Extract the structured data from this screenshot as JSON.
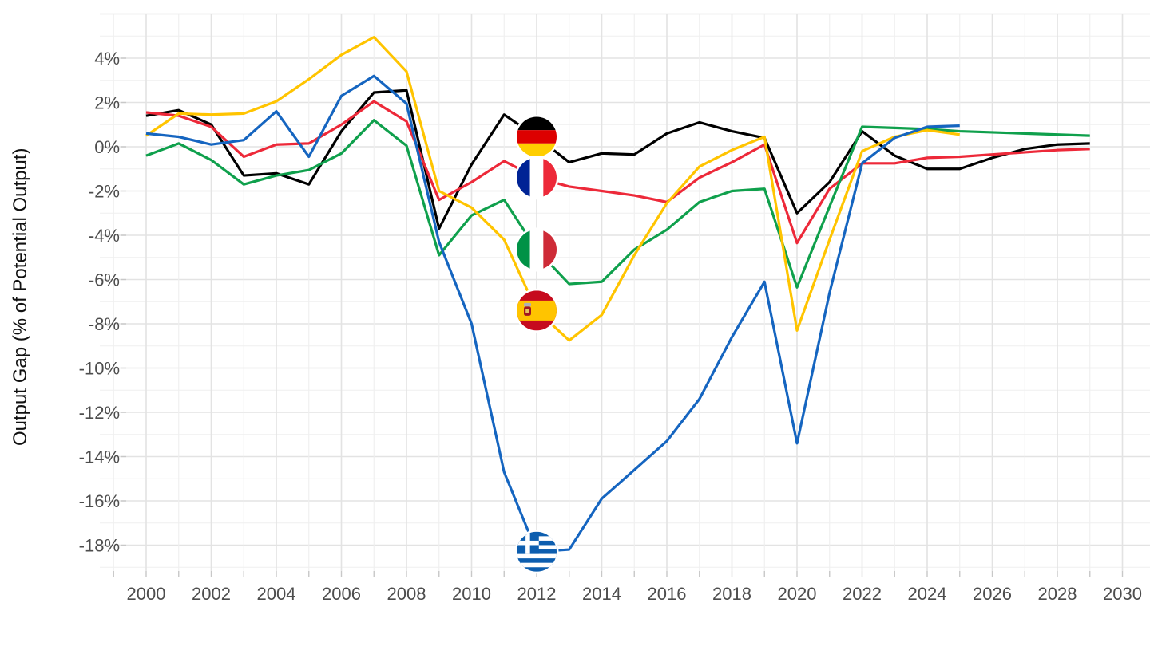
{
  "chart_data": {
    "type": "line",
    "title": "",
    "xlabel": "",
    "ylabel": "Output Gap (% of Potential Output)",
    "grid": "on",
    "legend": "circular country-flag icons placed on each line at year 2012",
    "xlim": [
      1999,
      2030.5
    ],
    "ylim": [
      -19,
      6
    ],
    "x_ticks": [
      {
        "v": 2000,
        "label": "2000"
      },
      {
        "v": 2002,
        "label": "2002"
      },
      {
        "v": 2004,
        "label": "2004"
      },
      {
        "v": 2006,
        "label": "2006"
      },
      {
        "v": 2008,
        "label": "2008"
      },
      {
        "v": 2010,
        "label": "2010"
      },
      {
        "v": 2012,
        "label": "2012"
      },
      {
        "v": 2014,
        "label": "2014"
      },
      {
        "v": 2016,
        "label": "2016"
      },
      {
        "v": 2018,
        "label": "2018"
      },
      {
        "v": 2020,
        "label": "2020"
      },
      {
        "v": 2022,
        "label": "2022"
      },
      {
        "v": 2024,
        "label": "2024"
      },
      {
        "v": 2026,
        "label": "2026"
      },
      {
        "v": 2028,
        "label": "2028"
      },
      {
        "v": 2030,
        "label": "2030"
      }
    ],
    "y_ticks": [
      {
        "v": 4,
        "label": "4%"
      },
      {
        "v": 2,
        "label": "2%"
      },
      {
        "v": 0,
        "label": "0%"
      },
      {
        "v": -2,
        "label": "-2%"
      },
      {
        "v": -4,
        "label": "-4%"
      },
      {
        "v": -6,
        "label": "-6%"
      },
      {
        "v": -8,
        "label": "-8%"
      },
      {
        "v": -10,
        "label": "-10%"
      },
      {
        "v": -12,
        "label": "-12%"
      },
      {
        "v": -14,
        "label": "-14%"
      },
      {
        "v": -16,
        "label": "-16%"
      },
      {
        "v": -18,
        "label": "-18%"
      }
    ],
    "x": [
      2000,
      2001,
      2002,
      2003,
      2004,
      2005,
      2006,
      2007,
      2008,
      2009,
      2010,
      2011,
      2012,
      2013,
      2014,
      2015,
      2016,
      2017,
      2018,
      2019,
      2020,
      2021,
      2022,
      2023,
      2024,
      2025,
      2026,
      2027,
      2028,
      2029
    ],
    "flag_marker_year": 2012,
    "series": [
      {
        "name": "Germany",
        "flag": "de",
        "color": "#000000",
        "values": [
          1.4,
          1.65,
          1.0,
          -1.3,
          -1.2,
          -1.7,
          0.7,
          2.45,
          2.55,
          -3.7,
          -0.8,
          1.45,
          0.45,
          -0.7,
          -0.3,
          -0.35,
          0.6,
          1.1,
          0.7,
          0.4,
          -3.0,
          -1.6,
          0.7,
          -0.4,
          -1.0,
          -1.0,
          -0.5,
          -0.1,
          0.1,
          0.15
        ]
      },
      {
        "name": "France",
        "flag": "fr",
        "color": "#ED2939",
        "values": [
          1.55,
          1.4,
          0.9,
          -0.45,
          0.1,
          0.15,
          1.0,
          2.05,
          1.15,
          -2.4,
          -1.6,
          -0.65,
          -1.4,
          -1.8,
          -2.0,
          -2.2,
          -2.5,
          -1.4,
          -0.7,
          0.1,
          -4.35,
          -1.9,
          -0.75,
          -0.75,
          -0.5,
          -0.45,
          -0.35,
          -0.25,
          -0.15,
          -0.1
        ]
      },
      {
        "name": "Italy",
        "flag": "it",
        "color": "#0FA04C",
        "values": [
          -0.4,
          0.15,
          -0.6,
          -1.7,
          -1.3,
          -1.05,
          -0.3,
          1.2,
          0.05,
          -4.9,
          -3.1,
          -2.4,
          -4.65,
          -6.2,
          -6.1,
          -4.65,
          -3.75,
          -2.5,
          -2.0,
          -1.9,
          -6.35,
          -2.7,
          0.9,
          0.85,
          0.8,
          0.7,
          0.65,
          0.6,
          0.55,
          0.5
        ]
      },
      {
        "name": "Spain",
        "flag": "es",
        "color": "#FFC400",
        "values": [
          0.5,
          1.5,
          1.45,
          1.5,
          2.05,
          3.05,
          4.15,
          4.95,
          3.4,
          -2.0,
          -2.75,
          -4.2,
          -7.4,
          -8.75,
          -7.6,
          -4.9,
          -2.55,
          -0.9,
          -0.15,
          0.45,
          -8.3,
          -4.2,
          -0.2,
          0.45,
          0.75,
          0.55,
          null,
          null,
          null,
          null
        ]
      },
      {
        "name": "Greece",
        "flag": "gr",
        "color": "#1565C0",
        "values": [
          0.6,
          0.45,
          0.1,
          0.3,
          1.6,
          -0.45,
          2.3,
          3.2,
          1.95,
          -4.3,
          -8.0,
          -14.7,
          -18.3,
          -18.2,
          -15.9,
          -14.6,
          -13.3,
          -11.4,
          -8.6,
          -6.1,
          -13.4,
          -6.6,
          -0.75,
          0.4,
          0.9,
          0.95,
          null,
          null,
          null,
          null
        ]
      }
    ],
    "palette": {
      "background": "#ffffff",
      "grid_major": "#e3e3e3",
      "grid_minor": "#efefef",
      "axis_text": "#4d4d4d",
      "title_text": "#111111"
    }
  }
}
